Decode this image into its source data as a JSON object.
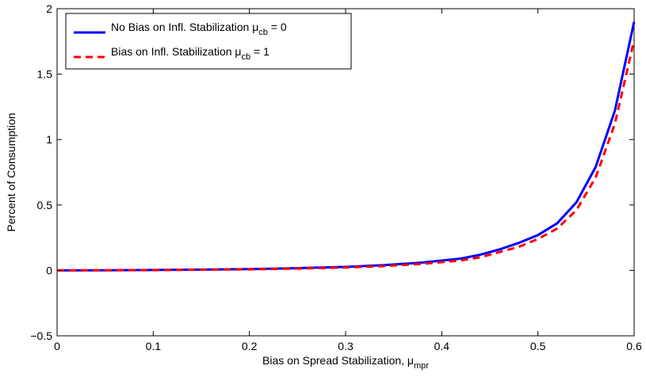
{
  "chart_data": {
    "type": "line",
    "title": "",
    "xlabel": "Bias on Spread Stabilization, μ",
    "xlabel_sub": "mpr",
    "ylabel": "Percent of Consumption",
    "xlim": [
      0,
      0.6
    ],
    "ylim": [
      -0.5,
      2
    ],
    "x_ticks": [
      0,
      0.1,
      0.2,
      0.3,
      0.4,
      0.5,
      0.6
    ],
    "x_tick_labels": [
      "0",
      "0.1",
      "0.2",
      "0.3",
      "0.4",
      "0.5",
      "0.6"
    ],
    "y_ticks": [
      -0.5,
      0,
      0.5,
      1,
      1.5,
      2
    ],
    "y_tick_labels": [
      "−0.5",
      "0",
      "0.5",
      "1",
      "1.5",
      "2"
    ],
    "grid": false,
    "legend_position": "top-left",
    "series": [
      {
        "name": "No Bias on Infl. Stabilization μ",
        "name_sub": "cb",
        "name_suffix": " = 0",
        "color": "#0000ff",
        "style": "solid",
        "x": [
          0,
          0.05,
          0.1,
          0.15,
          0.2,
          0.25,
          0.3,
          0.34,
          0.38,
          0.42,
          0.44,
          0.46,
          0.48,
          0.5,
          0.52,
          0.54,
          0.56,
          0.58,
          0.6
        ],
        "y": [
          0,
          0.001,
          0.003,
          0.006,
          0.01,
          0.017,
          0.027,
          0.04,
          0.06,
          0.09,
          0.12,
          0.16,
          0.21,
          0.27,
          0.36,
          0.52,
          0.79,
          1.22,
          1.9
        ]
      },
      {
        "name": "Bias on Infl. Stabilization μ",
        "name_sub": "cb",
        "name_suffix": " = 1",
        "color": "#ff0000",
        "style": "dashed",
        "x": [
          0,
          0.05,
          0.1,
          0.15,
          0.2,
          0.25,
          0.3,
          0.34,
          0.38,
          0.42,
          0.44,
          0.46,
          0.48,
          0.5,
          0.52,
          0.54,
          0.56,
          0.58,
          0.6
        ],
        "y": [
          0,
          0.001,
          0.002,
          0.005,
          0.008,
          0.014,
          0.022,
          0.033,
          0.05,
          0.076,
          0.1,
          0.14,
          0.18,
          0.24,
          0.32,
          0.46,
          0.71,
          1.12,
          1.76
        ]
      }
    ]
  }
}
